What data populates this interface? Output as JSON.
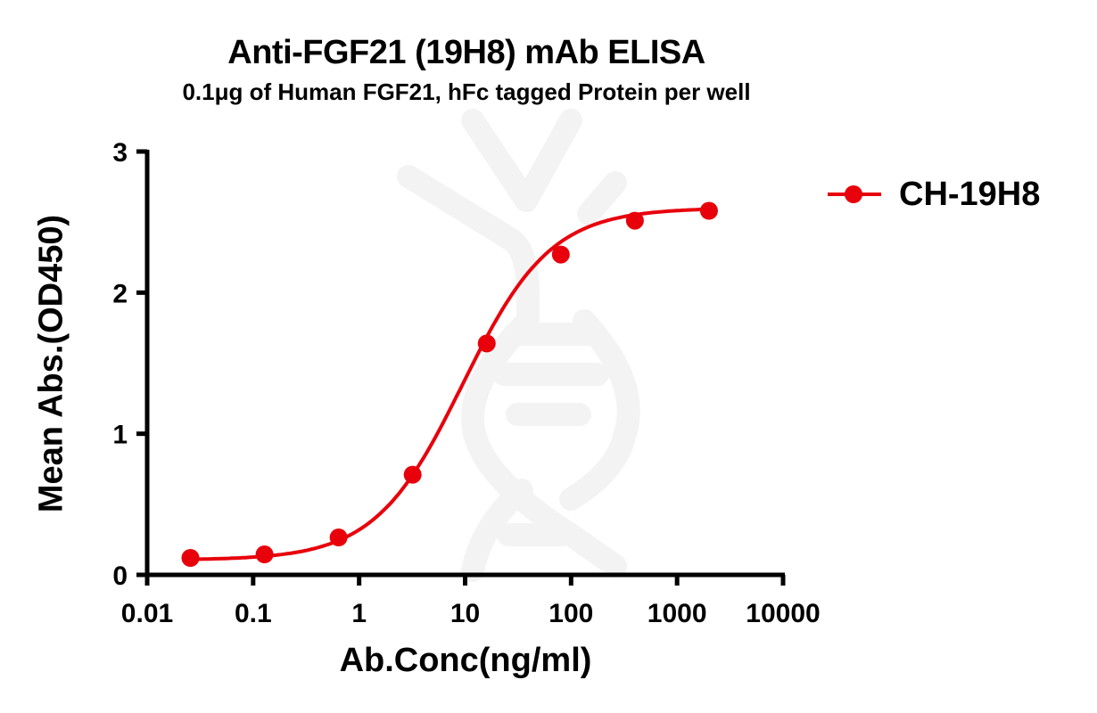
{
  "chart_data": {
    "type": "line",
    "title": "Anti-FGF21 (19H8) mAb ELISA",
    "subtitle": "0.1μg of Human FGF21, hFc tagged Protein per well",
    "xlabel": "Ab.Conc(ng/ml)",
    "ylabel": "Mean Abs.(OD450)",
    "xscale": "log",
    "xlim": [
      0.01,
      10000
    ],
    "ylim": [
      0,
      3
    ],
    "x_ticks": [
      "0.01",
      "0.1",
      "1",
      "10",
      "100",
      "1000",
      "10000"
    ],
    "y_ticks": [
      "0",
      "1",
      "2",
      "3"
    ],
    "grid": false,
    "legend_position": "right",
    "series": [
      {
        "name": "CH-19H8",
        "color": "#e8000b",
        "marker": "circle",
        "fit": "sigmoidal 4PL",
        "x": [
          0.0256,
          0.128,
          0.64,
          3.2,
          16,
          80,
          400,
          2000
        ],
        "values": [
          0.12,
          0.145,
          0.265,
          0.71,
          1.64,
          2.27,
          2.51,
          2.58
        ]
      }
    ]
  },
  "legend": {
    "label": "CH-19H8"
  },
  "watermark": "dna-helix-logo"
}
